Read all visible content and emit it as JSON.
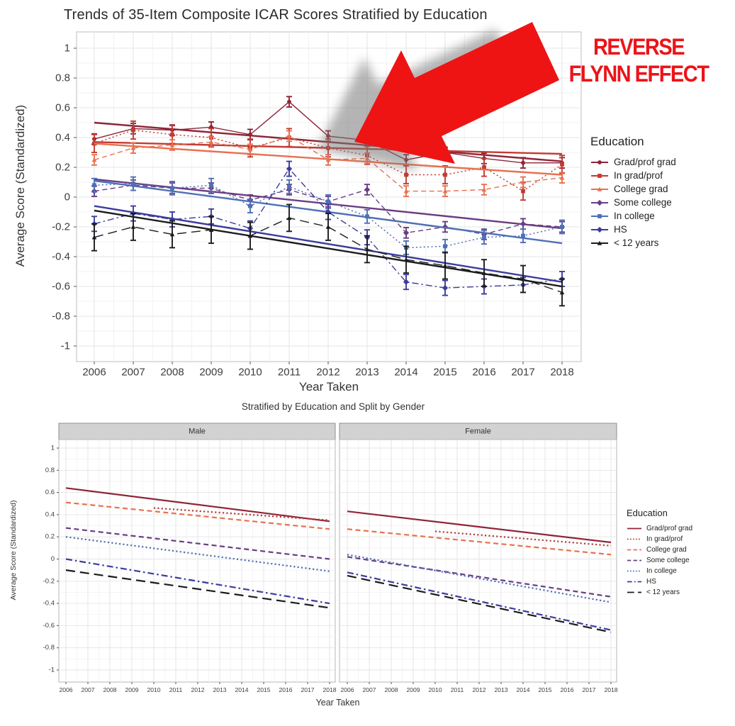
{
  "chart_data": [
    {
      "type": "line",
      "title": "Trends of 35-Item Composite ICAR Scores Stratified by Education",
      "xlabel": "Year Taken",
      "ylabel": "Average Score (Standardized)",
      "legend_title": "Education",
      "annotation": {
        "line1": "REVERSE",
        "line2": "FLYNN EFFECT",
        "color": "#ec1318"
      },
      "arrow_color": "#ee1414",
      "x": [
        2006,
        2007,
        2008,
        2009,
        2010,
        2011,
        2012,
        2013,
        2014,
        2015,
        2016,
        2017,
        2018
      ],
      "ylim": [
        -1,
        1
      ],
      "yticks": [
        1,
        0.8,
        0.6,
        0.4,
        0.2,
        0,
        -0.2,
        -0.4,
        -0.6,
        -0.8,
        -1
      ],
      "grid": "on",
      "legend_position": "right",
      "series": [
        {
          "name": "Grad/prof grad",
          "color": "#8e2537",
          "dash": "solid",
          "marker": "circle",
          "err": 0.035,
          "trend": [
            0.5,
            0.24
          ],
          "values": [
            0.39,
            0.46,
            0.45,
            0.47,
            0.42,
            0.64,
            0.41,
            0.38,
            0.25,
            0.3,
            0.26,
            0.23,
            0.23
          ]
        },
        {
          "name": "In grad/prof",
          "color": "#c23b33",
          "dash": "dotted",
          "marker": "square",
          "err": 0.06,
          "trend": [
            0.37,
            0.29
          ],
          "values": [
            0.36,
            0.45,
            0.42,
            0.4,
            0.33,
            0.4,
            0.33,
            0.28,
            0.15,
            0.15,
            0.2,
            0.04,
            0.22
          ]
        },
        {
          "name": "College grad",
          "color": "#e8704f",
          "dash": "dashed",
          "marker": "triangle",
          "err": 0.035,
          "trend": [
            0.36,
            0.15
          ],
          "values": [
            0.25,
            0.33,
            0.35,
            0.37,
            0.32,
            0.41,
            0.25,
            0.26,
            0.04,
            0.04,
            0.05,
            0.1,
            0.13
          ]
        },
        {
          "name": "Some college",
          "color": "#6a3d82",
          "dash": "dashed",
          "marker": "diamond",
          "err": 0.035,
          "trend": [
            0.12,
            -0.21
          ],
          "values": [
            0.04,
            0.08,
            0.06,
            0.06,
            -0.02,
            0.05,
            -0.03,
            0.05,
            -0.24,
            -0.2,
            -0.25,
            -0.18,
            -0.2
          ]
        },
        {
          "name": "In college",
          "color": "#4e6fb5",
          "dash": "dotted",
          "marker": "square",
          "err": 0.045,
          "trend": [
            0.11,
            -0.31
          ],
          "values": [
            0.08,
            0.09,
            0.06,
            0.08,
            -0.06,
            0.07,
            -0.03,
            -0.13,
            -0.34,
            -0.33,
            -0.27,
            -0.26,
            -0.2
          ]
        },
        {
          "name": "HS",
          "color": "#3c3c9e",
          "dash": "dashdot",
          "marker": "diamond",
          "err": 0.05,
          "trend": [
            -0.06,
            -0.57
          ],
          "values": [
            -0.18,
            -0.11,
            -0.15,
            -0.13,
            -0.21,
            0.19,
            -0.1,
            -0.27,
            -0.57,
            -0.61,
            -0.6,
            -0.59,
            -0.55
          ]
        },
        {
          "name": "< 12 years",
          "color": "#1c1c1c",
          "dash": "longdash",
          "marker": "triangle",
          "err": 0.09,
          "trend": [
            -0.09,
            -0.6
          ],
          "values": [
            -0.27,
            -0.2,
            -0.25,
            -0.22,
            -0.26,
            -0.14,
            -0.2,
            -0.35,
            -0.42,
            -0.46,
            -0.51,
            -0.55,
            -0.64
          ]
        }
      ]
    },
    {
      "type": "line",
      "title": "Stratified by Education and Split by Gender",
      "xlabel": "Year Taken",
      "ylabel": "Average Score (Standardized)",
      "legend_title": "Education",
      "facets": [
        "Male",
        "Female"
      ],
      "x": [
        2006,
        2007,
        2008,
        2009,
        2010,
        2011,
        2012,
        2013,
        2014,
        2015,
        2016,
        2017,
        2018
      ],
      "ylim": [
        -1,
        1
      ],
      "yticks": [
        1,
        0.8,
        0.6,
        0.4,
        0.2,
        0,
        -0.2,
        -0.4,
        -0.6,
        -0.8,
        -1
      ],
      "grid": "on",
      "legend_position": "right",
      "series": [
        {
          "name": "Grad/prof grad",
          "color": "#8e2537",
          "dash": "solid",
          "male": {
            "x": [
              2006,
              2018
            ],
            "y": [
              0.64,
              0.34
            ]
          },
          "female": {
            "x": [
              2006,
              2018
            ],
            "y": [
              0.43,
              0.15
            ]
          }
        },
        {
          "name": "In grad/prof",
          "color": "#b04038",
          "dash": "dotted",
          "male": {
            "x": [
              2010,
              2018
            ],
            "y": [
              0.46,
              0.35
            ]
          },
          "female": {
            "x": [
              2010,
              2018
            ],
            "y": [
              0.25,
              0.12
            ]
          }
        },
        {
          "name": "College grad",
          "color": "#e8704f",
          "dash": "dashed",
          "male": {
            "x": [
              2006,
              2018
            ],
            "y": [
              0.51,
              0.27
            ]
          },
          "female": {
            "x": [
              2006,
              2018
            ],
            "y": [
              0.27,
              0.04
            ]
          }
        },
        {
          "name": "Some college",
          "color": "#6a3d82",
          "dash": "dashed",
          "male": {
            "x": [
              2006,
              2018
            ],
            "y": [
              0.28,
              0.0
            ]
          },
          "female": {
            "x": [
              2006,
              2018
            ],
            "y": [
              0.02,
              -0.34
            ]
          }
        },
        {
          "name": "In college",
          "color": "#4e6fb5",
          "dash": "dotted",
          "male": {
            "x": [
              2006,
              2018
            ],
            "y": [
              0.2,
              -0.11
            ]
          },
          "female": {
            "x": [
              2006,
              2018
            ],
            "y": [
              0.04,
              -0.39
            ]
          }
        },
        {
          "name": "HS",
          "color": "#3c3c9e",
          "dash": "dashdot",
          "male": {
            "x": [
              2006,
              2018
            ],
            "y": [
              0.0,
              -0.4
            ]
          },
          "female": {
            "x": [
              2006,
              2018
            ],
            "y": [
              -0.12,
              -0.64
            ]
          }
        },
        {
          "name": "< 12 years",
          "color": "#1c1c1c",
          "dash": "longdash",
          "male": {
            "x": [
              2006,
              2018
            ],
            "y": [
              -0.1,
              -0.44
            ]
          },
          "female": {
            "x": [
              2006,
              2018
            ],
            "y": [
              -0.15,
              -0.66
            ]
          }
        }
      ]
    }
  ]
}
